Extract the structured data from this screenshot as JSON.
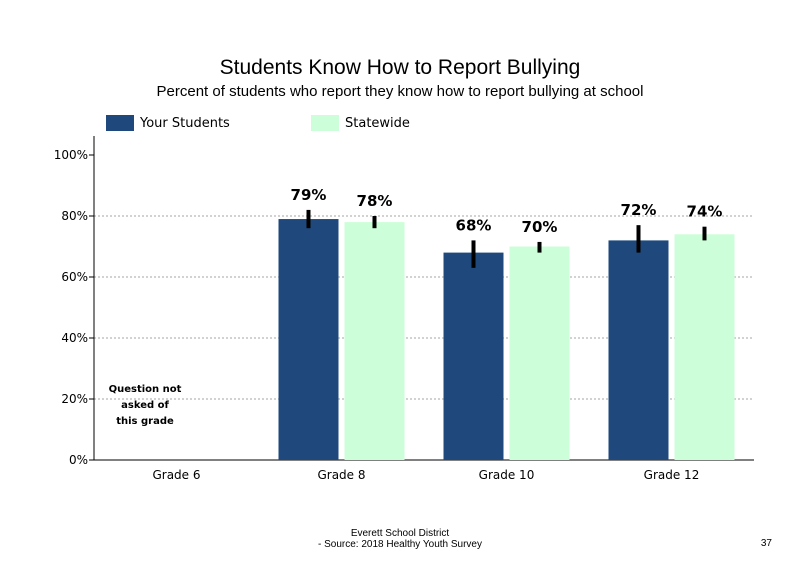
{
  "chart_data": {
    "type": "bar",
    "title": "Students Know How to Report Bullying",
    "subtitle": "Percent of students who report they know how to report bullying at school",
    "categories": [
      "Grade 6",
      "Grade 8",
      "Grade 10",
      "Grade 12"
    ],
    "series": [
      {
        "name": "Your Students",
        "color": "#1f497d",
        "values": [
          null,
          79,
          68,
          72
        ],
        "labels": [
          "",
          "79%",
          "68%",
          "72%"
        ],
        "error_low": [
          null,
          76,
          63,
          68
        ],
        "error_high": [
          null,
          82,
          72,
          77
        ]
      },
      {
        "name": "Statewide",
        "color": "#ccffd9",
        "values": [
          null,
          78,
          70,
          74
        ],
        "labels": [
          "",
          "78%",
          "70%",
          "74%"
        ],
        "error_low": [
          null,
          76,
          68,
          72
        ],
        "error_high": [
          null,
          80,
          71.5,
          76.5
        ]
      }
    ],
    "yticks": [
      "0%",
      "20%",
      "40%",
      "60%",
      "80%",
      "100%"
    ],
    "ylim": [
      0,
      100
    ],
    "grid_lines_at": [
      20,
      40,
      60,
      80
    ],
    "legend_position": "top-left",
    "annotation": "Question not asked of this grade",
    "annotation_lines": [
      "Question not",
      "asked of",
      "this grade"
    ]
  },
  "footer": {
    "line1": "Everett School District",
    "line2": "- Source: 2018 Healthy  Youth Survey",
    "page_number": "37"
  }
}
